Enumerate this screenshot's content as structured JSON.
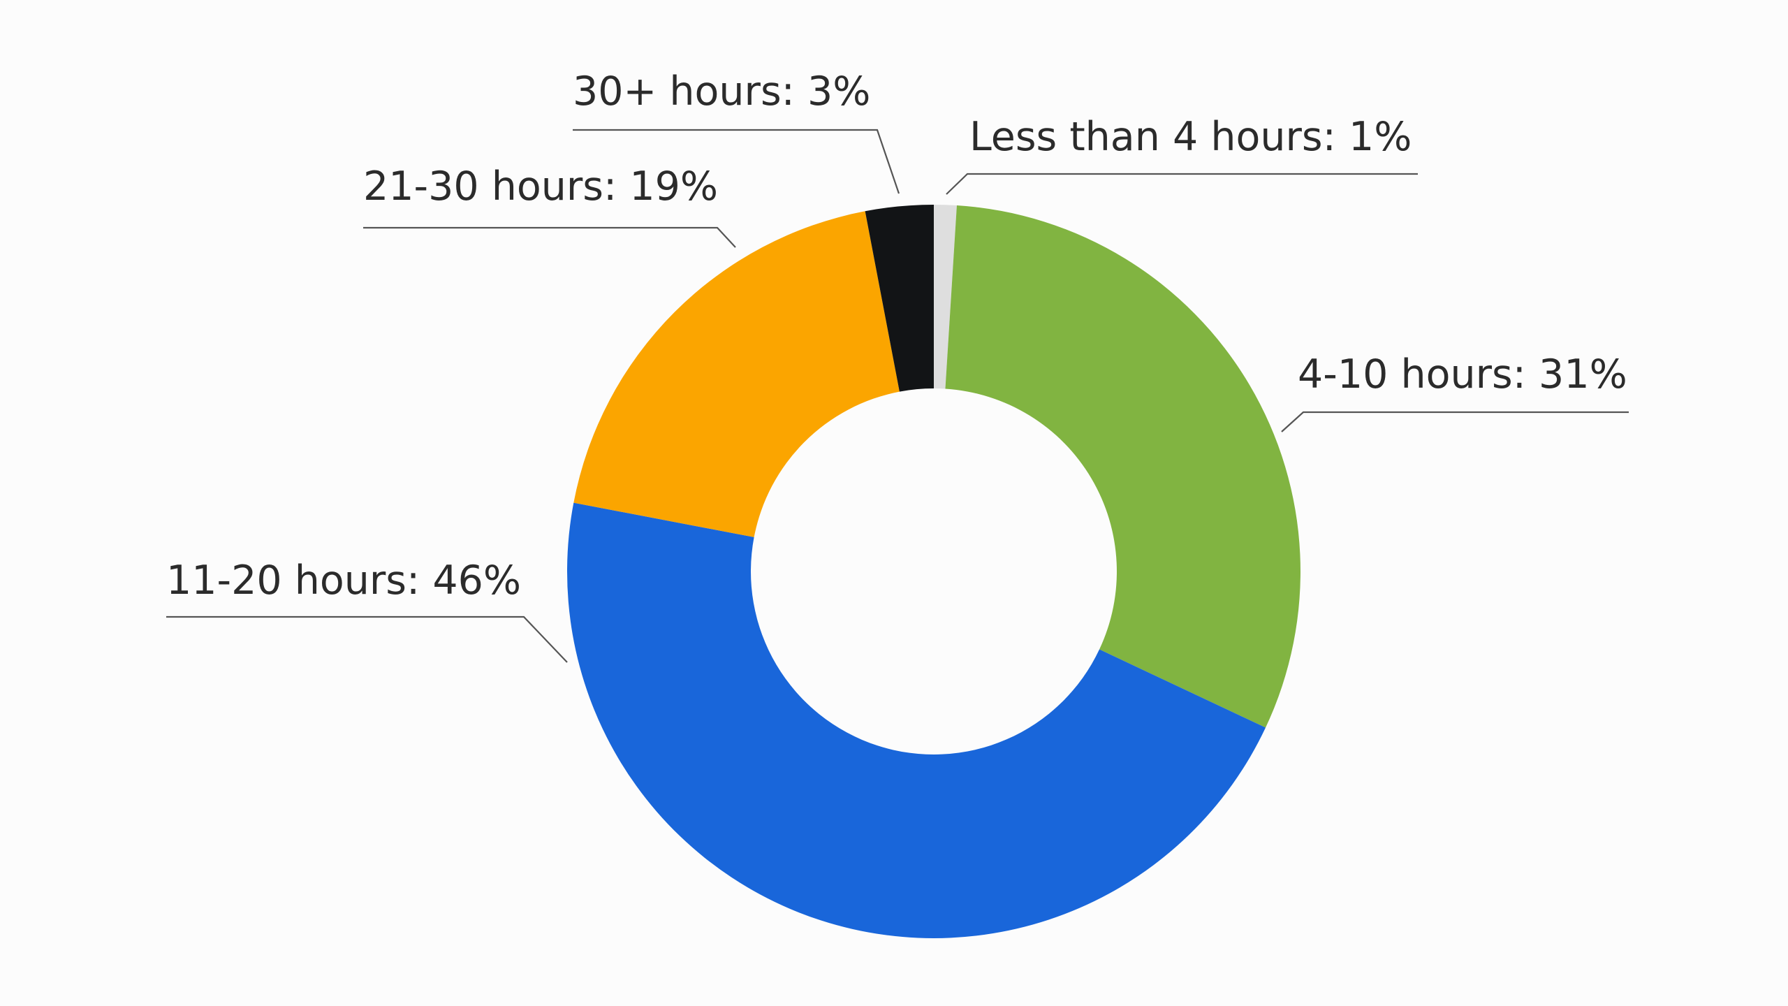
{
  "chart_data": {
    "type": "pie",
    "donut": true,
    "slices": [
      {
        "label": "Less than 4 hours",
        "value": 1,
        "display": "Less than 4 hours: 1%",
        "color": "#dedede"
      },
      {
        "label": "4-10 hours",
        "value": 31,
        "display": "4-10 hours: 31%",
        "color": "#81b441"
      },
      {
        "label": "11-20 hours",
        "value": 46,
        "display": "11-20 hours: 46%",
        "color": "#1966da"
      },
      {
        "label": "21-30 hours",
        "value": 19,
        "display": "21-30 hours: 19%",
        "color": "#fba500"
      },
      {
        "label": "30+ hours",
        "value": 3,
        "display": "30+ hours: 3%",
        "color": "#121416"
      }
    ],
    "start": "12 o'clock",
    "direction": "clockwise",
    "legend": "none",
    "data_labels": "outside with leader lines"
  }
}
